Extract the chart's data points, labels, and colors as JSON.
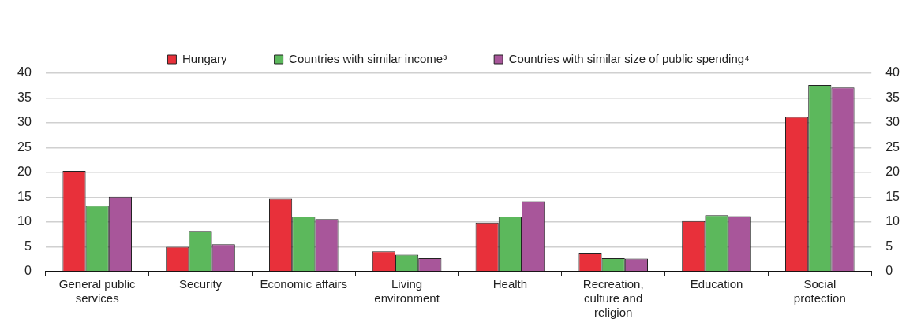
{
  "chart_data": {
    "type": "bar",
    "categories": [
      "General public services",
      "Security",
      "Economic affairs",
      "Living environment",
      "Health",
      "Recreation, culture and religion",
      "Education",
      "Social protection"
    ],
    "series": [
      {
        "name": "Hungary",
        "color": "#e8303a",
        "values": [
          20.3,
          5.0,
          14.7,
          4.1,
          9.9,
          3.8,
          10.2,
          31.2
        ]
      },
      {
        "name": "Countries with similar income³",
        "color": "#5cb85c",
        "values": [
          13.3,
          8.2,
          11.1,
          3.4,
          11.1,
          2.7,
          11.4,
          37.6
        ]
      },
      {
        "name": "Countries with similar size of public spending⁴",
        "color": "#a8569a",
        "values": [
          15.1,
          5.5,
          10.6,
          2.7,
          14.2,
          2.6,
          11.2,
          37.1
        ]
      }
    ],
    "ylim": [
      0,
      40
    ],
    "yticks": [
      0,
      5,
      10,
      15,
      20,
      25,
      30,
      35,
      40
    ],
    "y2lim": [
      0,
      40
    ],
    "y2ticks": [
      0,
      5,
      10,
      15,
      20,
      25,
      30,
      35,
      40
    ],
    "grid": "y",
    "legend": "top"
  }
}
